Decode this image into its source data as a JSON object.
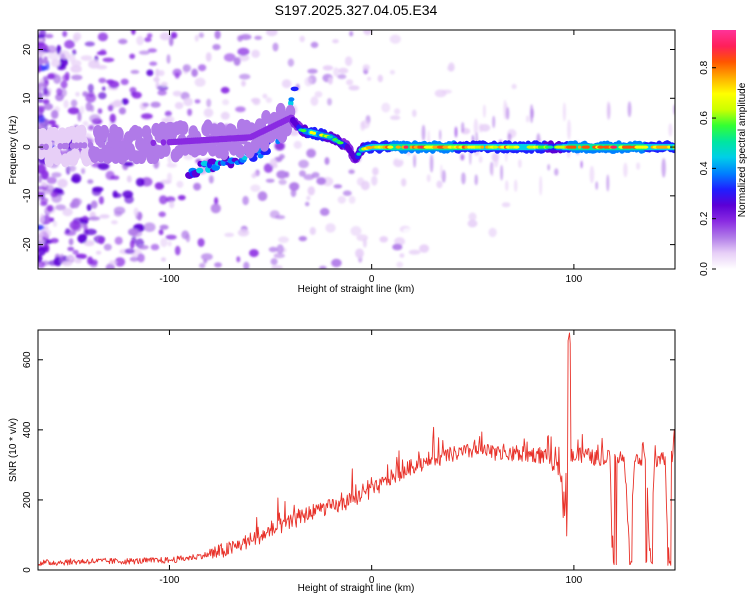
{
  "title": "S197.2025.327.04.05.E34",
  "chart_data": [
    {
      "type": "heatmap",
      "name": "spectrogram",
      "xlabel": "Height of straight line (km)",
      "ylabel": "Frequency (Hz)",
      "xlim": [
        -165,
        150
      ],
      "ylim": [
        -25,
        24
      ],
      "xticks": [
        -100,
        0,
        100
      ],
      "yticks": [
        -20,
        -10,
        0,
        10,
        20
      ],
      "xtick_labels": [
        "-100",
        "0",
        "100"
      ],
      "ytick_labels": [
        "-20",
        "-10",
        "0",
        "10",
        "20"
      ],
      "grid": false,
      "colorbar": {
        "label": "Normalized spectral amplitude",
        "range": [
          0,
          0.95
        ],
        "ticks": [
          0.0,
          0.2,
          0.4,
          0.6,
          0.8
        ],
        "tick_labels": [
          "0.0",
          "0.2",
          "0.4",
          "0.6",
          "0.8"
        ],
        "colormap": [
          "#ffffff",
          "#e7cff7",
          "#b07ae8",
          "#8a2be2",
          "#5b00d6",
          "#1f1fff",
          "#0080ff",
          "#00cfe8",
          "#00e6a0",
          "#33ff33",
          "#ccff00",
          "#ffff00",
          "#ffae00",
          "#ff5500",
          "#ff1f5a",
          "#ff3399"
        ]
      },
      "main_ridge": [
        {
          "x": -165,
          "y": 0,
          "amp": 0.15
        },
        {
          "x": -100,
          "y": 1,
          "amp": 0.3
        },
        {
          "x": -60,
          "y": 2,
          "amp": 0.35
        },
        {
          "x": -40,
          "y": 6,
          "amp": 0.35
        },
        {
          "x": -35,
          "y": 3.5,
          "amp": 0.5
        },
        {
          "x": -30,
          "y": 3,
          "amp": 0.7
        },
        {
          "x": -20,
          "y": 2,
          "amp": 0.6
        },
        {
          "x": -12,
          "y": 0,
          "amp": 0.45
        },
        {
          "x": -8,
          "y": -2.5,
          "amp": 0.4
        },
        {
          "x": -5,
          "y": -0.5,
          "amp": 0.6
        },
        {
          "x": 0,
          "y": 0,
          "amp": 0.75
        },
        {
          "x": 20,
          "y": 0,
          "amp": 0.8
        },
        {
          "x": 60,
          "y": 0,
          "amp": 0.75
        },
        {
          "x": 85,
          "y": 0,
          "amp": 0.65
        },
        {
          "x": 90,
          "y": 0,
          "amp": 0.5
        },
        {
          "x": 100,
          "y": 0,
          "amp": 0.85
        },
        {
          "x": 130,
          "y": 0,
          "amp": 0.8
        },
        {
          "x": 150,
          "y": 0,
          "amp": 0.7
        }
      ],
      "secondary_branch": [
        {
          "x": -90,
          "y": -5,
          "amp": 0.35
        },
        {
          "x": -70,
          "y": -3,
          "amp": 0.35
        },
        {
          "x": -55,
          "y": -1,
          "amp": 0.35
        },
        {
          "x": -45,
          "y": 3,
          "amp": 0.35
        },
        {
          "x": -38,
          "y": 12,
          "amp": 0.4
        }
      ]
    },
    {
      "type": "line",
      "name": "snr",
      "xlabel": "Height of straight line (km)",
      "ylabel": "SNR (10 * v/v)",
      "xlim": [
        -165,
        150
      ],
      "ylim": [
        0,
        685
      ],
      "xticks": [
        -100,
        0,
        100
      ],
      "yticks": [
        0,
        200,
        400,
        600
      ],
      "xtick_labels": [
        "-100",
        "0",
        "100"
      ],
      "ytick_labels": [
        "0",
        "200",
        "400",
        "600"
      ],
      "grid": false,
      "series": [
        {
          "name": "SNR",
          "color": "#e8322a",
          "x": [
            -165,
            -140,
            -120,
            -100,
            -90,
            -80,
            -70,
            -60,
            -50,
            -45,
            -40,
            -35,
            -30,
            -25,
            -20,
            -15,
            -10,
            -5,
            0,
            5,
            10,
            15,
            20,
            30,
            40,
            50,
            60,
            70,
            80,
            88,
            90,
            92,
            95,
            97,
            98,
            100,
            105,
            110,
            115,
            118,
            119,
            120,
            125,
            128,
            130,
            135,
            138,
            140,
            145,
            147,
            148,
            150
          ],
          "y": [
            20,
            25,
            25,
            28,
            35,
            45,
            60,
            85,
            110,
            125,
            135,
            150,
            165,
            175,
            180,
            185,
            200,
            215,
            225,
            245,
            265,
            280,
            295,
            315,
            330,
            340,
            335,
            330,
            330,
            320,
            300,
            290,
            250,
            40,
            330,
            320,
            330,
            320,
            320,
            320,
            15,
            320,
            320,
            15,
            320,
            320,
            15,
            310,
            320,
            15,
            320,
            335
          ]
        }
      ]
    }
  ]
}
